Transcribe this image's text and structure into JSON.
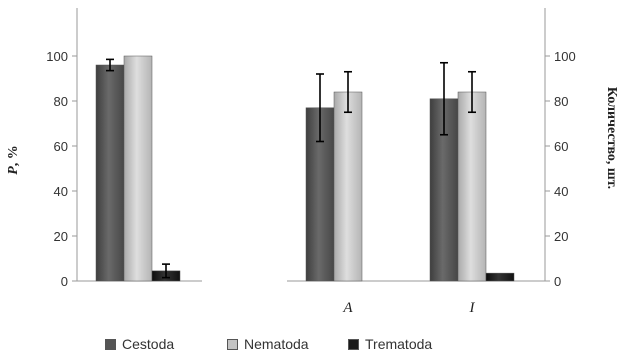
{
  "chart_data": {
    "type": "bar",
    "panels": [
      {
        "categories": [
          ""
        ],
        "ylabel": "P, %",
        "ylim": [
          0,
          100
        ],
        "yticks": [
          0,
          20,
          40,
          60,
          80,
          100
        ],
        "series": [
          {
            "name": "Cestoda",
            "values": [
              96
            ],
            "errors": [
              2.5
            ]
          },
          {
            "name": "Nematoda",
            "values": [
              100
            ],
            "errors": [
              0
            ]
          },
          {
            "name": "Trematoda",
            "values": [
              4.5
            ],
            "errors": [
              3
            ]
          }
        ]
      },
      {
        "categories": [
          "A",
          "I"
        ],
        "ylabel": "Количество, шт.",
        "ylim": [
          0,
          100
        ],
        "yticks": [
          0,
          20,
          40,
          60,
          80,
          100
        ],
        "series": [
          {
            "name": "Cestoda",
            "values": [
              77,
              81
            ],
            "errors": [
              15,
              16
            ]
          },
          {
            "name": "Nematoda",
            "values": [
              84,
              84
            ],
            "errors": [
              9,
              9
            ]
          },
          {
            "name": "Trematoda",
            "values": [
              0,
              3.5
            ],
            "errors": [
              0,
              0
            ]
          }
        ]
      }
    ],
    "legend": [
      "Cestoda",
      "Nematoda",
      "Trematoda"
    ],
    "legend_position": "bottom",
    "colors": {
      "Cestoda": "#555555",
      "Nematoda": "#c4c4c4",
      "Trematoda": "#1a1a1a"
    }
  }
}
